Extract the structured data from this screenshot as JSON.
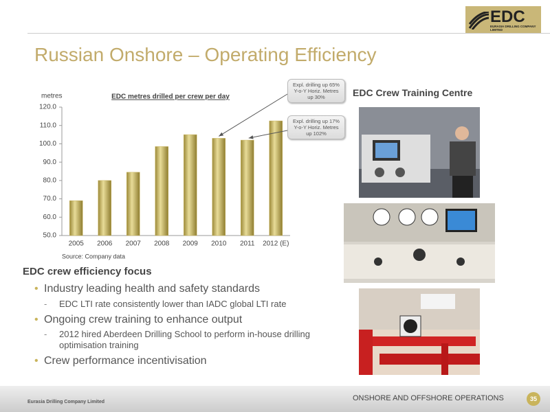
{
  "logo": {
    "name": "EDC",
    "subtitle": "EURASIA DRILLING COMPANY LIMITED"
  },
  "title": "Russian Onshore – Operating Efficiency",
  "chart_data": {
    "type": "bar",
    "title": "EDC metres drilled per crew per day",
    "y_label": "metres",
    "categories": [
      "2005",
      "2006",
      "2007",
      "2008",
      "2009",
      "2010",
      "2011",
      "2012 (E)"
    ],
    "values": [
      69,
      80,
      84.5,
      98.5,
      105,
      103,
      102,
      112.5
    ],
    "color": "#c9b45c",
    "ylim": [
      50,
      120
    ],
    "yticks": [
      {
        "value": 50,
        "label": "50.0"
      },
      {
        "value": 60,
        "label": "60.0"
      },
      {
        "value": 70,
        "label": "70.0"
      },
      {
        "value": 80,
        "label": "80.0"
      },
      {
        "value": 90,
        "label": "90.0"
      },
      {
        "value": 100,
        "label": "100.0"
      },
      {
        "value": 110,
        "label": "110.0"
      },
      {
        "value": 120,
        "label": "120.0"
      }
    ],
    "source": "Source: Company data",
    "annotations": [
      "Expl. drilling up 65% Y-o-Y Horiz. Metres up 30%",
      "Expl. drilling up 17% Y-o-Y Horiz. Metres up 102%"
    ]
  },
  "photos_title": "EDC Crew Training Centre",
  "focus": {
    "heading": "EDC crew efficiency focus",
    "bullets": [
      {
        "text": "Industry leading health and safety standards",
        "sub": [
          "EDC LTI rate consistently lower than IADC global LTI rate"
        ]
      },
      {
        "text": "Ongoing crew training to enhance output",
        "sub": [
          "2012 hired Aberdeen Drilling School to perform in-house drilling optimisation training"
        ]
      },
      {
        "text": "Crew performance incentivisation"
      }
    ]
  },
  "footer": {
    "company": "Eurasia Drilling Company Limited",
    "section": "ONSHORE AND OFFSHORE OPERATIONS",
    "page": 35
  }
}
